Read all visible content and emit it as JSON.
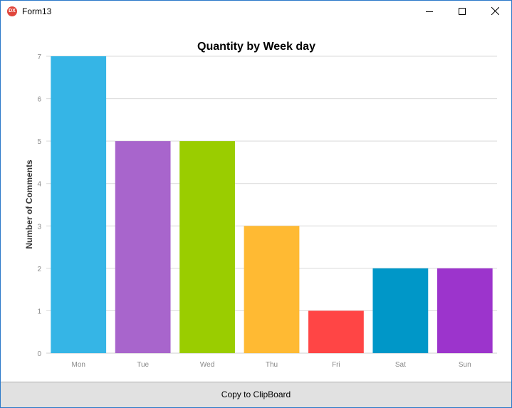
{
  "window": {
    "title": "Form13",
    "icon_name": "devexpress-app-icon",
    "icon_text": "DX"
  },
  "footer": {
    "copy_button_label": "Copy to ClipBoard"
  },
  "colors": {
    "window_border": "#2b79c9",
    "grid": "#d9d9d9",
    "axis_text": "#8a8a8a",
    "button_face": "#e1e1e1"
  },
  "chart_data": {
    "type": "bar",
    "title": "Quantity by Week day",
    "xlabel": "",
    "ylabel": "Number of Comments",
    "categories": [
      "Mon",
      "Tue",
      "Wed",
      "Thu",
      "Fri",
      "Sat",
      "Sun"
    ],
    "values": [
      7,
      5,
      5,
      3,
      1,
      2,
      2
    ],
    "colors": [
      "#35b5e6",
      "#a865cc",
      "#9acd00",
      "#ffba33",
      "#ff4545",
      "#0097c8",
      "#9c34cc"
    ],
    "ylim": [
      0,
      7
    ],
    "yticks": [
      0,
      1,
      2,
      3,
      4,
      5,
      6,
      7
    ],
    "grid": true,
    "legend": "none"
  }
}
